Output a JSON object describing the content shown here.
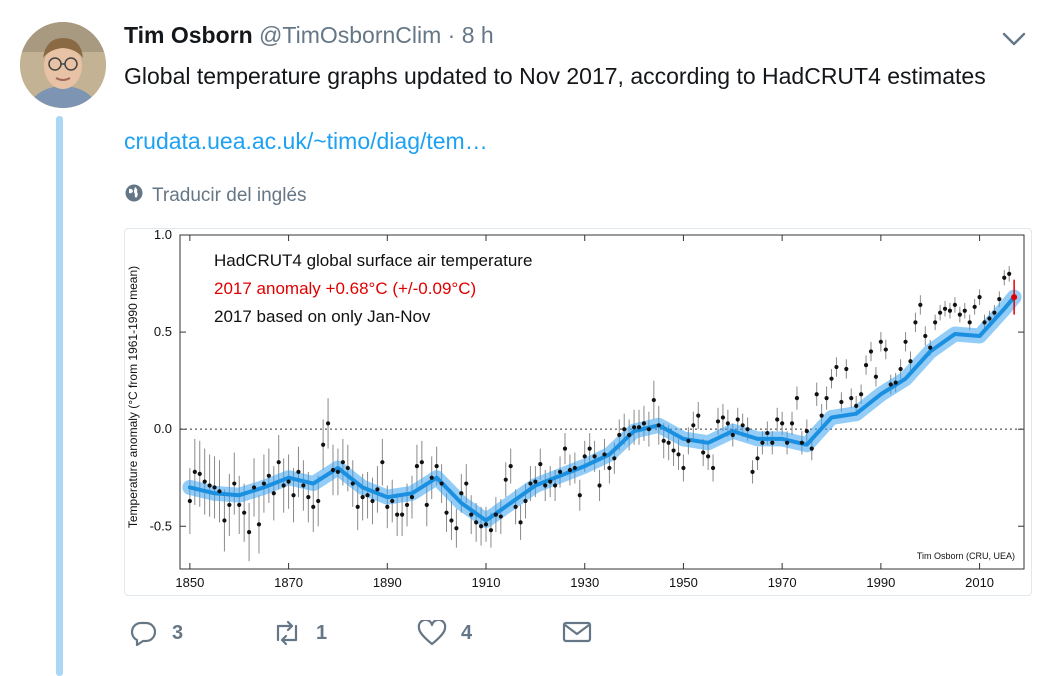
{
  "tweet": {
    "author_name": "Tim Osborn",
    "handle": "@TimOsbornClim",
    "separator": "·",
    "time": "8 h",
    "text": "Global temperature graphs updated to Nov 2017, according to HadCRUT4 estimates",
    "link": "crudata.uea.ac.uk/~timo/diag/tem…",
    "translate": "Traducir del inglés"
  },
  "actions": {
    "replies": "3",
    "retweets": "1",
    "likes": "4"
  },
  "icons": {
    "caret": "chevron-down-icon",
    "translate": "globe-icon",
    "reply": "reply-icon",
    "retweet": "retweet-icon",
    "like": "heart-icon",
    "dm": "envelope-icon"
  },
  "colors": {
    "link": "#1da1f2",
    "muted": "#657786",
    "thread": "#aad8f4",
    "anomaly_red": "#e00000",
    "smooth_blue": "#2aa0f0"
  },
  "chart_data": {
    "type": "scatter",
    "title": "HadCRUT4 global surface air temperature",
    "annotation_red": "2017 anomaly +0.68°C (+/-0.09°C)",
    "annotation_note": "2017 based on only Jan-Nov",
    "ylabel": "Temperature anomaly (°C from 1961-1990 mean)",
    "credit": "Tim Osborn (CRU, UEA)",
    "xlim": [
      1848,
      2019
    ],
    "ylim": [
      -0.72,
      1.0
    ],
    "x_ticks": [
      "1850",
      "1870",
      "1890",
      "1910",
      "1930",
      "1950",
      "1970",
      "1990",
      "2010"
    ],
    "y_ticks": [
      "1.0",
      "0.5",
      "0.0",
      "-0.5"
    ],
    "zero_line": "dotted",
    "series": [
      {
        "style": "annual points with error bars",
        "x": [
          1850,
          1851,
          1852,
          1853,
          1854,
          1855,
          1856,
          1857,
          1858,
          1859,
          1860,
          1861,
          1862,
          1863,
          1864,
          1865,
          1866,
          1867,
          1868,
          1869,
          1870,
          1871,
          1872,
          1873,
          1874,
          1875,
          1876,
          1877,
          1878,
          1879,
          1880,
          1881,
          1882,
          1883,
          1884,
          1885,
          1886,
          1887,
          1888,
          1889,
          1890,
          1891,
          1892,
          1893,
          1894,
          1895,
          1896,
          1897,
          1898,
          1899,
          1900,
          1901,
          1902,
          1903,
          1904,
          1905,
          1906,
          1907,
          1908,
          1909,
          1910,
          1911,
          1912,
          1913,
          1914,
          1915,
          1916,
          1917,
          1918,
          1919,
          1920,
          1921,
          1922,
          1923,
          1924,
          1925,
          1926,
          1927,
          1928,
          1929,
          1930,
          1931,
          1932,
          1933,
          1934,
          1935,
          1936,
          1937,
          1938,
          1939,
          1940,
          1941,
          1942,
          1943,
          1944,
          1945,
          1946,
          1947,
          1948,
          1949,
          1950,
          1951,
          1952,
          1953,
          1954,
          1955,
          1956,
          1957,
          1958,
          1959,
          1960,
          1961,
          1962,
          1963,
          1964,
          1965,
          1966,
          1967,
          1968,
          1969,
          1970,
          1971,
          1972,
          1973,
          1974,
          1975,
          1976,
          1977,
          1978,
          1979,
          1980,
          1981,
          1982,
          1983,
          1984,
          1985,
          1986,
          1987,
          1988,
          1989,
          1990,
          1991,
          1992,
          1993,
          1994,
          1995,
          1996,
          1997,
          1998,
          1999,
          2000,
          2001,
          2002,
          2003,
          2004,
          2005,
          2006,
          2007,
          2008,
          2009,
          2010,
          2011,
          2012,
          2013,
          2014,
          2015,
          2016
        ],
        "y": [
          -0.37,
          -0.22,
          -0.23,
          -0.27,
          -0.29,
          -0.3,
          -0.32,
          -0.47,
          -0.39,
          -0.28,
          -0.39,
          -0.43,
          -0.53,
          -0.3,
          -0.49,
          -0.28,
          -0.24,
          -0.33,
          -0.17,
          -0.29,
          -0.27,
          -0.34,
          -0.22,
          -0.29,
          -0.35,
          -0.4,
          -0.37,
          -0.08,
          0.03,
          -0.21,
          -0.22,
          -0.17,
          -0.2,
          -0.28,
          -0.4,
          -0.35,
          -0.34,
          -0.37,
          -0.31,
          -0.17,
          -0.4,
          -0.37,
          -0.44,
          -0.44,
          -0.39,
          -0.35,
          -0.19,
          -0.17,
          -0.39,
          -0.25,
          -0.19,
          -0.28,
          -0.43,
          -0.47,
          -0.51,
          -0.33,
          -0.28,
          -0.44,
          -0.48,
          -0.5,
          -0.49,
          -0.52,
          -0.44,
          -0.45,
          -0.26,
          -0.19,
          -0.4,
          -0.48,
          -0.37,
          -0.28,
          -0.27,
          -0.18,
          -0.29,
          -0.27,
          -0.29,
          -0.22,
          -0.1,
          -0.21,
          -0.2,
          -0.34,
          -0.14,
          -0.1,
          -0.14,
          -0.29,
          -0.13,
          -0.2,
          -0.15,
          -0.03,
          -0.0,
          -0.03,
          0.01,
          0.01,
          0.03,
          0.0,
          0.15,
          0.02,
          -0.06,
          -0.07,
          -0.11,
          -0.13,
          -0.2,
          -0.06,
          0.02,
          0.07,
          -0.12,
          -0.14,
          -0.2,
          0.04,
          0.06,
          0.03,
          -0.03,
          0.05,
          0.02,
          0.0,
          -0.22,
          -0.15,
          -0.07,
          -0.02,
          -0.07,
          0.05,
          0.03,
          -0.07,
          0.03,
          0.16,
          -0.07,
          -0.01,
          -0.1,
          0.18,
          0.07,
          0.16,
          0.26,
          0.32,
          0.14,
          0.31,
          0.16,
          0.12,
          0.18,
          0.33,
          0.4,
          0.27,
          0.45,
          0.41,
          0.23,
          0.24,
          0.31,
          0.45,
          0.35,
          0.55,
          0.64,
          0.48,
          0.42,
          0.55,
          0.6,
          0.62,
          0.61,
          0.64,
          0.59,
          0.61,
          0.55,
          0.63,
          0.68,
          0.55,
          0.57,
          0.6,
          0.67,
          0.78,
          0.8
        ],
        "err": [
          0.17,
          0.17,
          0.17,
          0.17,
          0.16,
          0.16,
          0.16,
          0.16,
          0.16,
          0.16,
          0.15,
          0.15,
          0.15,
          0.15,
          0.15,
          0.15,
          0.14,
          0.14,
          0.14,
          0.14,
          0.14,
          0.14,
          0.13,
          0.13,
          0.13,
          0.13,
          0.13,
          0.13,
          0.13,
          0.13,
          0.12,
          0.12,
          0.12,
          0.12,
          0.12,
          0.12,
          0.12,
          0.12,
          0.12,
          0.12,
          0.11,
          0.11,
          0.11,
          0.11,
          0.11,
          0.11,
          0.11,
          0.11,
          0.11,
          0.11,
          0.1,
          0.1,
          0.1,
          0.1,
          0.1,
          0.1,
          0.1,
          0.1,
          0.1,
          0.1,
          0.09,
          0.09,
          0.09,
          0.09,
          0.09,
          0.09,
          0.09,
          0.09,
          0.09,
          0.09,
          0.08,
          0.08,
          0.08,
          0.08,
          0.08,
          0.08,
          0.08,
          0.08,
          0.08,
          0.08,
          0.08,
          0.08,
          0.08,
          0.08,
          0.08,
          0.08,
          0.08,
          0.08,
          0.08,
          0.08,
          0.09,
          0.09,
          0.09,
          0.09,
          0.1,
          0.1,
          0.09,
          0.09,
          0.08,
          0.08,
          0.07,
          0.07,
          0.07,
          0.07,
          0.07,
          0.07,
          0.07,
          0.07,
          0.07,
          0.07,
          0.06,
          0.06,
          0.06,
          0.06,
          0.06,
          0.06,
          0.06,
          0.06,
          0.06,
          0.06,
          0.06,
          0.06,
          0.06,
          0.06,
          0.06,
          0.06,
          0.06,
          0.06,
          0.06,
          0.06,
          0.05,
          0.05,
          0.05,
          0.05,
          0.05,
          0.05,
          0.05,
          0.05,
          0.05,
          0.05,
          0.05,
          0.05,
          0.05,
          0.05,
          0.05,
          0.05,
          0.05,
          0.05,
          0.05,
          0.05,
          0.04,
          0.04,
          0.04,
          0.04,
          0.04,
          0.04,
          0.04,
          0.04,
          0.04,
          0.04,
          0.04,
          0.04,
          0.04,
          0.04,
          0.04,
          0.04,
          0.04
        ]
      },
      {
        "style": "smoothed band",
        "x": [
          1850,
          1855,
          1860,
          1865,
          1870,
          1875,
          1880,
          1885,
          1890,
          1895,
          1900,
          1905,
          1910,
          1915,
          1920,
          1925,
          1930,
          1935,
          1940,
          1945,
          1950,
          1955,
          1960,
          1965,
          1970,
          1975,
          1980,
          1985,
          1990,
          1995,
          2000,
          2005,
          2010,
          2015,
          2017
        ],
        "y": [
          -0.3,
          -0.33,
          -0.34,
          -0.3,
          -0.25,
          -0.28,
          -0.2,
          -0.3,
          -0.35,
          -0.33,
          -0.25,
          -0.38,
          -0.47,
          -0.38,
          -0.29,
          -0.24,
          -0.19,
          -0.13,
          -0.01,
          0.02,
          -0.05,
          -0.07,
          -0.01,
          -0.05,
          -0.05,
          -0.08,
          0.06,
          0.08,
          0.18,
          0.26,
          0.4,
          0.49,
          0.48,
          0.62,
          0.68
        ]
      },
      {
        "style": "2017 point (red)",
        "x": [
          2017
        ],
        "y": [
          0.68
        ],
        "err": [
          0.09
        ]
      }
    ]
  }
}
